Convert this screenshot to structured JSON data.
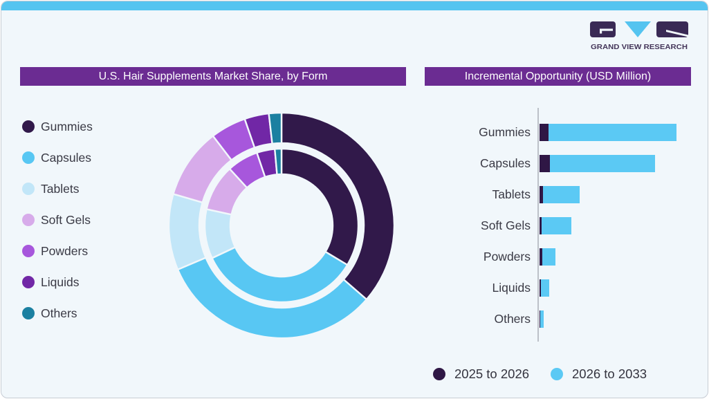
{
  "brand": {
    "logo_text": "GRAND VIEW RESEARCH"
  },
  "panels": {
    "donut": {
      "title": "U.S. Hair Supplements Market Share, by Form"
    },
    "bars": {
      "title": "Incremental Opportunity (USD Million)"
    }
  },
  "colors": {
    "accent_purple": "#6B2C92",
    "strip_blue": "#55C4F0",
    "card_background": "#F1F7FB",
    "card_border": "#C7CCD4",
    "text": "#3A3A45",
    "logo_purple": "#443559",
    "logo_blue": "#55C4F0",
    "palette": [
      "#31194A",
      "#58C7F3",
      "#C2E6F8",
      "#D7ABEA",
      "#A757DC",
      "#7127A6",
      "#1B80A1"
    ],
    "bar_dark": "#2F1745",
    "bar_blue": "#5BC9F4",
    "axis_line": "#BCC1C8"
  },
  "chart_data": [
    {
      "type": "donut",
      "title": "U.S. Hair Supplements Market Share, by Form",
      "categories": [
        "Gummies",
        "Capsules",
        "Tablets",
        "Soft Gels",
        "Powders",
        "Liquids",
        "Others"
      ],
      "series": [
        {
          "name": "inner ring",
          "values": [
            33.6,
            34.4,
            10.4,
            9.8,
            6.6,
            3.8,
            1.4
          ]
        },
        {
          "name": "outer ring",
          "values": [
            36.4,
            32.2,
            10.9,
            10.1,
            5.1,
            3.5,
            1.8
          ]
        }
      ],
      "values_unit": "percent share, estimated from arc angles (no numeric labels shown)",
      "start_angle": "12 o'clock, clockwise",
      "legend_position": "left"
    },
    {
      "type": "bar",
      "orientation": "horizontal",
      "title": "Incremental Opportunity (USD Million)",
      "categories": [
        "Gummies",
        "Capsules",
        "Tablets",
        "Soft Gels",
        "Powders",
        "Liquids",
        "Others"
      ],
      "series": [
        {
          "name": "2025 to 2026",
          "values": [
            6.8,
            7.4,
            2.4,
            1.6,
            1.8,
            0.9,
            0.4
          ]
        },
        {
          "name": "2026 to 2033",
          "values": [
            93.2,
            77.0,
            26.8,
            21.7,
            9.8,
            6.4,
            2.4
          ]
        }
      ],
      "values_unit": "relative units (largest stacked bar = 100; no numeric axis labels shown)",
      "stacked": true,
      "value_axis_labels": "none shown",
      "legend_position": "bottom"
    }
  ]
}
